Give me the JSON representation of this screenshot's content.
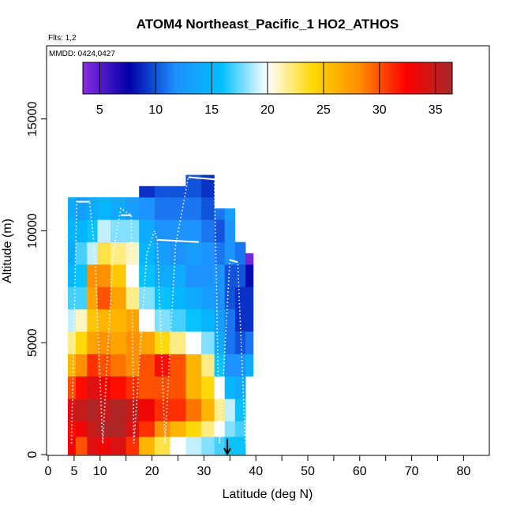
{
  "chart_data": {
    "type": "heatmap",
    "title": "ATOM4 Northeast_Pacific_1 HO2_ATHOS",
    "flights_label": "Flts: 1,2",
    "dates_label": "MMDD: 0424,0427",
    "xlabel": "Latitude (deg N)",
    "ylabel": "Altitude (m)",
    "xlim": [
      0,
      85
    ],
    "ylim": [
      0,
      18000
    ],
    "x_ticks": [
      "0",
      "5",
      "10",
      "20",
      "30",
      "40",
      "50",
      "60",
      "70",
      "80"
    ],
    "x_tick_values": [
      0,
      5,
      10,
      20,
      30,
      40,
      50,
      60,
      70,
      80
    ],
    "y_ticks": [
      "0",
      "5000",
      "10000",
      "15000"
    ],
    "y_tick_values": [
      0,
      5000,
      10000,
      15000
    ],
    "colorbar": {
      "range": [
        3.5,
        36.5
      ],
      "tick_labels": [
        "5",
        "10",
        "15",
        "20",
        "25",
        "30",
        "35"
      ],
      "tick_values": [
        5,
        10,
        15,
        20,
        25,
        30,
        35
      ],
      "colors": [
        "#8a2be2",
        "#0000a8",
        "#1e90ff",
        "#00bfff",
        "#ffffff",
        "#ffd700",
        "#ff8c00",
        "#ff0000",
        "#a52a2a"
      ]
    },
    "marker": {
      "latitude": 34.5,
      "altitude": 700,
      "symbol": "down-arrow"
    },
    "columns": [
      {
        "x0": 3.8,
        "x1": 5.3,
        "values": [
          [
            0,
            800,
            33
          ],
          [
            800,
            1500,
            32
          ],
          [
            1500,
            2500,
            34
          ],
          [
            2500,
            3500,
            30
          ],
          [
            3500,
            4500,
            26
          ],
          [
            4500,
            5500,
            22
          ],
          [
            5500,
            6500,
            19
          ],
          [
            6500,
            7500,
            17
          ],
          [
            7500,
            8500,
            15
          ],
          [
            8500,
            9500,
            14
          ],
          [
            9500,
            10500,
            15
          ],
          [
            10500,
            11500,
            14
          ]
        ]
      },
      {
        "x0": 5.3,
        "x1": 7.5,
        "values": [
          [
            0,
            800,
            30
          ],
          [
            800,
            1500,
            33
          ],
          [
            1500,
            2500,
            35
          ],
          [
            2500,
            3500,
            32
          ],
          [
            3500,
            4500,
            28
          ],
          [
            4500,
            5500,
            24
          ],
          [
            5500,
            6500,
            21
          ],
          [
            6500,
            7500,
            17
          ],
          [
            7500,
            8500,
            16
          ],
          [
            8500,
            9500,
            17
          ],
          [
            9500,
            10500,
            15
          ],
          [
            10500,
            11500,
            13
          ]
        ]
      },
      {
        "x0": 7.5,
        "x1": 9.5,
        "values": [
          [
            0,
            800,
            34
          ],
          [
            800,
            1500,
            35
          ],
          [
            1500,
            2500,
            36
          ],
          [
            2500,
            3500,
            34
          ],
          [
            3500,
            4500,
            31
          ],
          [
            4500,
            5500,
            27
          ],
          [
            5500,
            6500,
            25
          ],
          [
            6500,
            7500,
            27
          ],
          [
            7500,
            8500,
            28
          ],
          [
            8500,
            9500,
            19
          ],
          [
            9500,
            10500,
            16
          ],
          [
            10500,
            11500,
            14
          ]
        ]
      },
      {
        "x0": 9.5,
        "x1": 12,
        "values": [
          [
            0,
            800,
            33
          ],
          [
            800,
            1500,
            36
          ],
          [
            1500,
            2500,
            35
          ],
          [
            2500,
            3500,
            33
          ],
          [
            3500,
            4500,
            30
          ],
          [
            4500,
            5500,
            28
          ],
          [
            5500,
            6500,
            26
          ],
          [
            6500,
            7500,
            30
          ],
          [
            7500,
            8500,
            28
          ],
          [
            8500,
            9500,
            23
          ],
          [
            9500,
            10500,
            19
          ],
          [
            10500,
            11500,
            15
          ]
        ]
      },
      {
        "x0": 12,
        "x1": 15,
        "values": [
          [
            0,
            800,
            34
          ],
          [
            800,
            1500,
            36
          ],
          [
            1500,
            2500,
            36
          ],
          [
            2500,
            3500,
            32
          ],
          [
            3500,
            4500,
            29
          ],
          [
            4500,
            5500,
            27
          ],
          [
            5500,
            6500,
            26
          ],
          [
            6500,
            7500,
            27
          ],
          [
            7500,
            8500,
            25
          ],
          [
            8500,
            9500,
            22
          ],
          [
            9500,
            10500,
            18
          ],
          [
            10500,
            11500,
            14
          ]
        ]
      },
      {
        "x0": 15,
        "x1": 17.5,
        "values": [
          [
            0,
            800,
            31
          ],
          [
            800,
            1500,
            34
          ],
          [
            1500,
            2500,
            35
          ],
          [
            2500,
            3500,
            31
          ],
          [
            3500,
            4500,
            28
          ],
          [
            4500,
            5500,
            28
          ],
          [
            5500,
            6500,
            27
          ],
          [
            6500,
            7500,
            22
          ],
          [
            7500,
            8500,
            20
          ],
          [
            8500,
            9500,
            21
          ],
          [
            9500,
            10500,
            18
          ],
          [
            10500,
            11500,
            13
          ]
        ]
      },
      {
        "x0": 17.5,
        "x1": 20.5,
        "values": [
          [
            0,
            800,
            26
          ],
          [
            800,
            1500,
            31
          ],
          [
            1500,
            2500,
            33
          ],
          [
            2500,
            3500,
            30
          ],
          [
            3500,
            4500,
            30
          ],
          [
            4500,
            5500,
            27
          ],
          [
            5500,
            6500,
            20
          ],
          [
            6500,
            7500,
            18
          ],
          [
            7500,
            8500,
            16
          ],
          [
            8500,
            9500,
            15
          ],
          [
            9500,
            10500,
            14
          ],
          [
            10500,
            11500,
            12
          ],
          [
            11500,
            12000,
            9
          ]
        ]
      },
      {
        "x0": 20.5,
        "x1": 23.5,
        "values": [
          [
            0,
            800,
            23
          ],
          [
            800,
            1500,
            28
          ],
          [
            1500,
            2500,
            31
          ],
          [
            2500,
            3500,
            30
          ],
          [
            3500,
            4500,
            32
          ],
          [
            4500,
            5500,
            24
          ],
          [
            5500,
            6500,
            18
          ],
          [
            6500,
            7500,
            16
          ],
          [
            7500,
            8500,
            14
          ],
          [
            8500,
            9500,
            13
          ],
          [
            9500,
            10500,
            12
          ],
          [
            10500,
            11500,
            11
          ],
          [
            11500,
            12000,
            10
          ]
        ]
      },
      {
        "x0": 23.5,
        "x1": 26.5,
        "values": [
          [
            0,
            800,
            20
          ],
          [
            800,
            1500,
            26
          ],
          [
            1500,
            2500,
            31
          ],
          [
            2500,
            3500,
            30
          ],
          [
            3500,
            4500,
            30
          ],
          [
            4500,
            5500,
            22
          ],
          [
            5500,
            6500,
            17
          ],
          [
            6500,
            7500,
            15
          ],
          [
            7500,
            8500,
            14
          ],
          [
            8500,
            9500,
            12
          ],
          [
            9500,
            10500,
            12
          ],
          [
            10500,
            11500,
            11
          ],
          [
            11500,
            12000,
            10
          ]
        ]
      },
      {
        "x0": 26.5,
        "x1": 29.5,
        "values": [
          [
            0,
            800,
            19
          ],
          [
            800,
            1500,
            24
          ],
          [
            1500,
            2500,
            29
          ],
          [
            2500,
            3500,
            26
          ],
          [
            3500,
            4500,
            26
          ],
          [
            4500,
            5500,
            20
          ],
          [
            5500,
            6500,
            16
          ],
          [
            6500,
            7500,
            14
          ],
          [
            7500,
            8500,
            12
          ],
          [
            8500,
            9500,
            13
          ],
          [
            9500,
            10500,
            12
          ],
          [
            10500,
            11500,
            11
          ],
          [
            11500,
            12500,
            10
          ]
        ]
      },
      {
        "x0": 29.5,
        "x1": 32,
        "values": [
          [
            0,
            800,
            18
          ],
          [
            800,
            1500,
            22
          ],
          [
            1500,
            2500,
            26
          ],
          [
            2500,
            3500,
            24
          ],
          [
            3500,
            4500,
            22
          ],
          [
            4500,
            5500,
            18
          ],
          [
            5500,
            6500,
            15
          ],
          [
            6500,
            7500,
            13
          ],
          [
            7500,
            8500,
            12
          ],
          [
            8500,
            9500,
            12
          ],
          [
            9500,
            10500,
            11
          ],
          [
            10500,
            11500,
            10
          ],
          [
            11500,
            12500,
            9
          ]
        ]
      },
      {
        "x0": 32,
        "x1": 34,
        "values": [
          [
            0,
            800,
            17
          ],
          [
            800,
            1500,
            20
          ],
          [
            1500,
            2500,
            22
          ],
          [
            2500,
            3500,
            20
          ],
          [
            3500,
            4500,
            16
          ],
          [
            4500,
            5500,
            14
          ],
          [
            5500,
            6500,
            13
          ],
          [
            6500,
            7500,
            12
          ],
          [
            7500,
            8500,
            12
          ],
          [
            8500,
            9500,
            11
          ],
          [
            9500,
            10500,
            10
          ],
          [
            10500,
            11000,
            11
          ]
        ]
      },
      {
        "x0": 34,
        "x1": 36,
        "values": [
          [
            0,
            800,
            16
          ],
          [
            800,
            1500,
            18
          ],
          [
            1500,
            2500,
            19
          ],
          [
            2500,
            3500,
            15
          ],
          [
            3500,
            4500,
            12
          ],
          [
            4500,
            5500,
            11
          ],
          [
            5500,
            6500,
            11
          ],
          [
            6500,
            7500,
            10
          ],
          [
            7500,
            8500,
            10
          ],
          [
            8500,
            9500,
            12
          ],
          [
            9500,
            10500,
            12
          ],
          [
            10500,
            11000,
            13
          ]
        ]
      },
      {
        "x0": 36,
        "x1": 38,
        "values": [
          [
            0,
            800,
            16
          ],
          [
            800,
            1500,
            17
          ],
          [
            1500,
            2500,
            16
          ],
          [
            2500,
            3500,
            14
          ],
          [
            3500,
            4500,
            12
          ],
          [
            4500,
            5500,
            10
          ],
          [
            5500,
            6500,
            9
          ],
          [
            6500,
            7500,
            9
          ],
          [
            7500,
            8500,
            10
          ],
          [
            8500,
            9500,
            11
          ]
        ]
      },
      {
        "x0": 38,
        "x1": 39.5,
        "values": [
          [
            3500,
            4500,
            14
          ],
          [
            4500,
            5500,
            11
          ],
          [
            5500,
            6500,
            9
          ],
          [
            6500,
            7500,
            9
          ],
          [
            7500,
            8500,
            8
          ],
          [
            8500,
            9000,
            4
          ]
        ]
      }
    ]
  }
}
